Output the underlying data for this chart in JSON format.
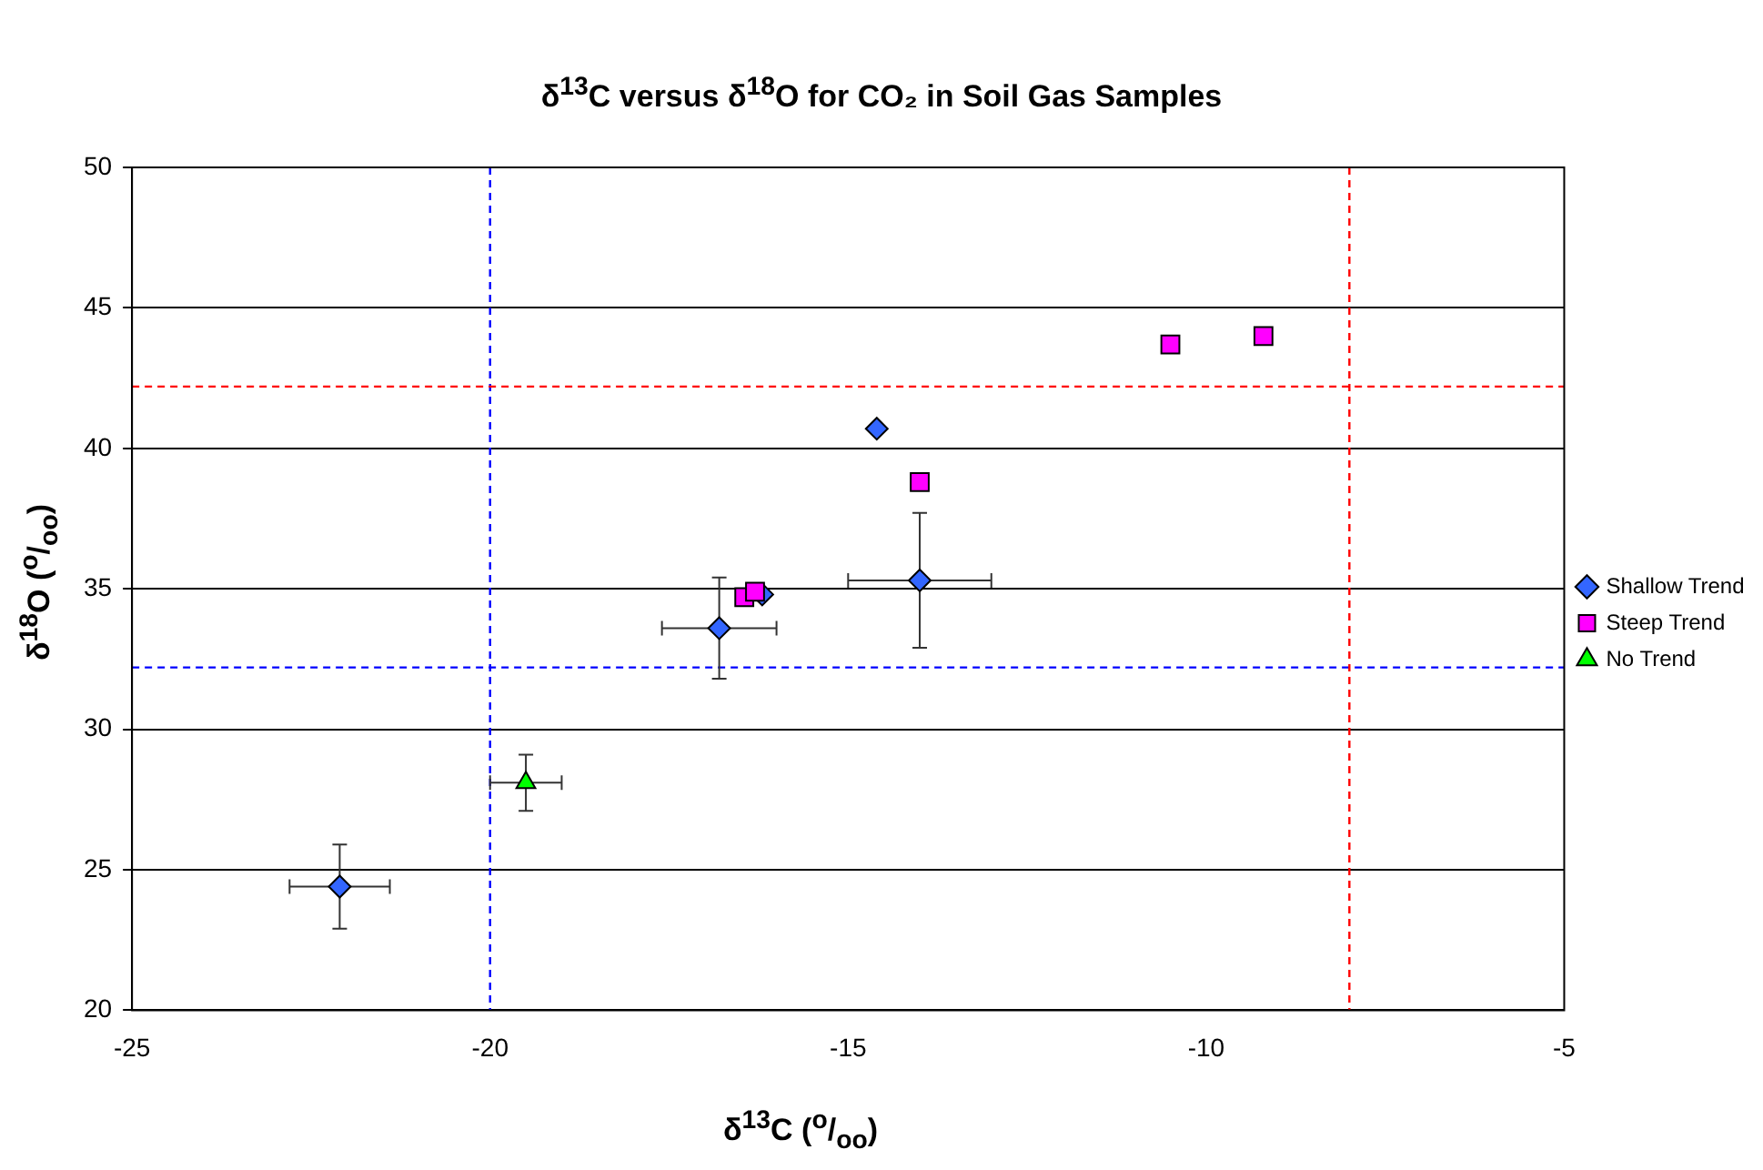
{
  "chart_data": {
    "type": "scatter",
    "title": "δ$^{13}$C versus δ$^{18}$O for CO₂ in Soil Gas Samples",
    "xlabel": "δ$^{13}$C ($^{o}$/$_{oo}$)",
    "ylabel": "δ$^{18}$O ($^{o}$/$_{oo}$)",
    "xlim": [
      -25,
      -5
    ],
    "xticks": [
      -25,
      -20,
      -15,
      -10,
      -5
    ],
    "ylim": [
      20,
      50
    ],
    "yticks": [
      20,
      25,
      30,
      35,
      40,
      45,
      50
    ],
    "grid": "y",
    "legend": "right",
    "series": [
      {
        "name": "Shallow Trend",
        "color": "#3366ff",
        "marker": "diamond",
        "x": [
          -22.1,
          -16.8,
          -14.0,
          -16.2,
          -14.6
        ],
        "values": [
          24.4,
          33.6,
          35.3,
          34.8,
          40.7
        ],
        "errors": [
          1.5,
          1.8,
          2.4,
          null,
          null
        ],
        "xerrors": [
          0.7,
          0.8,
          1.0,
          null,
          null
        ]
      },
      {
        "name": "Steep Trend",
        "color": "#ff00ff",
        "marker": "square",
        "x": [
          -16.45,
          -16.3,
          -14.0,
          -10.5,
          -9.2
        ],
        "values": [
          34.7,
          34.9,
          38.8,
          43.7,
          44.0
        ]
      },
      {
        "name": "No Trend",
        "color": "#00ff00",
        "marker": "triangle",
        "x": [
          -19.5
        ],
        "values": [
          28.1
        ],
        "errors": [
          1.0
        ],
        "xerrors": [
          0.5
        ]
      }
    ],
    "ref_lines": [
      {
        "axis": "x",
        "value": -20,
        "color": "#0000ff",
        "line_style": "dashed"
      },
      {
        "axis": "y",
        "value": 32.2,
        "color": "#0000ff",
        "line_style": "dashed"
      },
      {
        "axis": "x",
        "value": -8,
        "color": "#ff0000",
        "line_style": "dashed"
      },
      {
        "axis": "y",
        "value": 42.2,
        "color": "#ff0000",
        "line_style": "dashed"
      }
    ]
  }
}
